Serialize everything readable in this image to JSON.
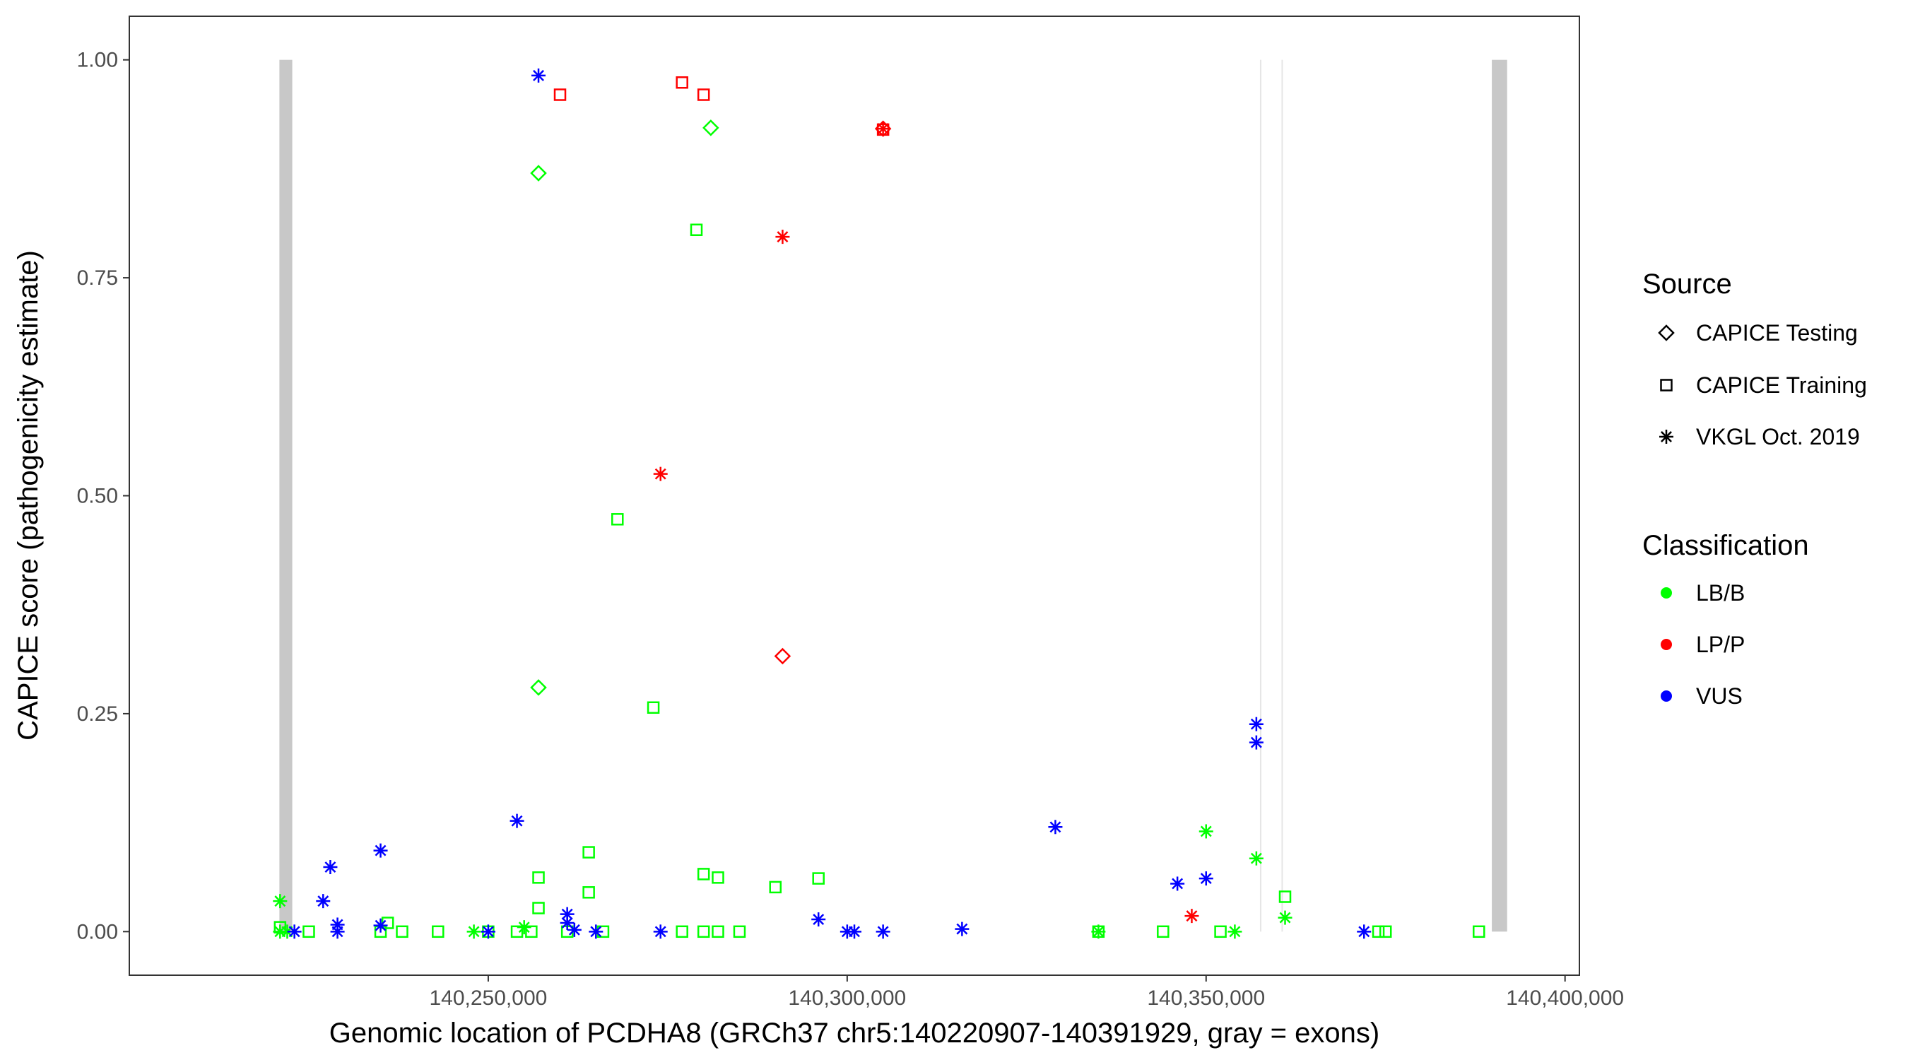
{
  "chart_data": {
    "type": "scatter",
    "xlabel": "Genomic location of PCDHA8 (GRCh37 chr5:140220907-140391929, gray = exons)",
    "ylabel": "CAPICE score (pathogenicity estimate)",
    "xlim": [
      140200000,
      140402000
    ],
    "ylim": [
      -0.05,
      1.05
    ],
    "x_ticks": [
      140250000,
      140300000,
      140350000,
      140400000
    ],
    "x_tick_labels": [
      "140,250,000",
      "140,300,000",
      "140,350,000",
      "140,400,000"
    ],
    "y_ticks": [
      0,
      0.25,
      0.5,
      0.75,
      1
    ],
    "y_tick_labels": [
      "0.00",
      "0.25",
      "0.50",
      "0.75",
      "1.00"
    ],
    "grid": false,
    "legend_position": "right",
    "exons": [
      {
        "start": 140220907,
        "end": 140222700
      },
      {
        "start": 140357500,
        "end": 140357650
      },
      {
        "start": 140360500,
        "end": 140360650
      },
      {
        "start": 140389800,
        "end": 140391929
      }
    ],
    "legend": {
      "source_title": "Source",
      "sources": [
        {
          "shape": "diamond",
          "label": "CAPICE Testing"
        },
        {
          "shape": "square",
          "label": "CAPICE Training"
        },
        {
          "shape": "asterisk",
          "label": "VKGL Oct. 2019"
        }
      ],
      "class_title": "Classification",
      "classes": [
        {
          "key": "LB/B",
          "label": "LB/B",
          "color": "#00ff00"
        },
        {
          "key": "LP/P",
          "label": "LP/P",
          "color": "#ff0000"
        },
        {
          "key": "VUS",
          "label": "VUS",
          "color": "#0000ff"
        }
      ]
    },
    "series": [
      {
        "source": "CAPICE Testing",
        "shape": "diamond",
        "points": [
          {
            "x": 140257000,
            "y": 0.87,
            "cls": "LB/B"
          },
          {
            "x": 140257000,
            "y": 0.28,
            "cls": "LB/B"
          },
          {
            "x": 140281000,
            "y": 0.922,
            "cls": "LB/B"
          },
          {
            "x": 140291000,
            "y": 0.316,
            "cls": "LP/P"
          },
          {
            "x": 140305000,
            "y": 0.921,
            "cls": "LP/P"
          }
        ]
      },
      {
        "source": "CAPICE Training",
        "shape": "square",
        "points": [
          {
            "x": 140260000,
            "y": 0.96,
            "cls": "LP/P"
          },
          {
            "x": 140277000,
            "y": 0.974,
            "cls": "LP/P"
          },
          {
            "x": 140280000,
            "y": 0.96,
            "cls": "LP/P"
          },
          {
            "x": 140305000,
            "y": 0.92,
            "cls": "LP/P"
          },
          {
            "x": 140279000,
            "y": 0.805,
            "cls": "LB/B"
          },
          {
            "x": 140268000,
            "y": 0.473,
            "cls": "LB/B"
          },
          {
            "x": 140273000,
            "y": 0.257,
            "cls": "LB/B"
          },
          {
            "x": 140264000,
            "y": 0.091,
            "cls": "LB/B"
          },
          {
            "x": 140280000,
            "y": 0.066,
            "cls": "LB/B"
          },
          {
            "x": 140282000,
            "y": 0.062,
            "cls": "LB/B"
          },
          {
            "x": 140257000,
            "y": 0.062,
            "cls": "LB/B"
          },
          {
            "x": 140296000,
            "y": 0.061,
            "cls": "LB/B"
          },
          {
            "x": 140290000,
            "y": 0.051,
            "cls": "LB/B"
          },
          {
            "x": 140264000,
            "y": 0.045,
            "cls": "LB/B"
          },
          {
            "x": 140361000,
            "y": 0.04,
            "cls": "LB/B"
          },
          {
            "x": 140257000,
            "y": 0.027,
            "cls": "LB/B"
          },
          {
            "x": 140236000,
            "y": 0.01,
            "cls": "LB/B"
          },
          {
            "x": 140221000,
            "y": 0.005,
            "cls": "LB/B"
          },
          {
            "x": 140225000,
            "y": 0.0,
            "cls": "LB/B"
          },
          {
            "x": 140235000,
            "y": 0.0,
            "cls": "LB/B"
          },
          {
            "x": 140238000,
            "y": 0.0,
            "cls": "LB/B"
          },
          {
            "x": 140243000,
            "y": 0.0,
            "cls": "LB/B"
          },
          {
            "x": 140250000,
            "y": 0.0,
            "cls": "LB/B"
          },
          {
            "x": 140254000,
            "y": 0.0,
            "cls": "LB/B"
          },
          {
            "x": 140256000,
            "y": 0.0,
            "cls": "LB/B"
          },
          {
            "x": 140261000,
            "y": 0.0,
            "cls": "LB/B"
          },
          {
            "x": 140266000,
            "y": 0.0,
            "cls": "LB/B"
          },
          {
            "x": 140277000,
            "y": 0.0,
            "cls": "LB/B"
          },
          {
            "x": 140280000,
            "y": 0.0,
            "cls": "LB/B"
          },
          {
            "x": 140282000,
            "y": 0.0,
            "cls": "LB/B"
          },
          {
            "x": 140285000,
            "y": 0.0,
            "cls": "LB/B"
          },
          {
            "x": 140335000,
            "y": 0.0,
            "cls": "LB/B"
          },
          {
            "x": 140344000,
            "y": 0.0,
            "cls": "LB/B"
          },
          {
            "x": 140352000,
            "y": 0.0,
            "cls": "LB/B"
          },
          {
            "x": 140374000,
            "y": 0.0,
            "cls": "LB/B"
          },
          {
            "x": 140375000,
            "y": 0.0,
            "cls": "LB/B"
          },
          {
            "x": 140388000,
            "y": 0.0,
            "cls": "LB/B"
          }
        ]
      },
      {
        "source": "VKGL Oct. 2019",
        "shape": "asterisk",
        "points": [
          {
            "x": 140257000,
            "y": 0.982,
            "cls": "VUS"
          },
          {
            "x": 140305000,
            "y": 0.921,
            "cls": "LP/P"
          },
          {
            "x": 140291000,
            "y": 0.797,
            "cls": "LP/P"
          },
          {
            "x": 140274000,
            "y": 0.525,
            "cls": "LP/P"
          },
          {
            "x": 140357000,
            "y": 0.238,
            "cls": "VUS"
          },
          {
            "x": 140357000,
            "y": 0.217,
            "cls": "VUS"
          },
          {
            "x": 140254000,
            "y": 0.127,
            "cls": "VUS"
          },
          {
            "x": 140329000,
            "y": 0.12,
            "cls": "VUS"
          },
          {
            "x": 140350000,
            "y": 0.115,
            "cls": "LB/B"
          },
          {
            "x": 140235000,
            "y": 0.093,
            "cls": "VUS"
          },
          {
            "x": 140357000,
            "y": 0.084,
            "cls": "LB/B"
          },
          {
            "x": 140228000,
            "y": 0.074,
            "cls": "VUS"
          },
          {
            "x": 140350000,
            "y": 0.061,
            "cls": "VUS"
          },
          {
            "x": 140346000,
            "y": 0.055,
            "cls": "VUS"
          },
          {
            "x": 140227000,
            "y": 0.035,
            "cls": "VUS"
          },
          {
            "x": 140221000,
            "y": 0.035,
            "cls": "LB/B"
          },
          {
            "x": 140261000,
            "y": 0.02,
            "cls": "VUS"
          },
          {
            "x": 140348000,
            "y": 0.018,
            "cls": "LP/P"
          },
          {
            "x": 140361000,
            "y": 0.016,
            "cls": "LB/B"
          },
          {
            "x": 140296000,
            "y": 0.014,
            "cls": "VUS"
          },
          {
            "x": 140261000,
            "y": 0.01,
            "cls": "VUS"
          },
          {
            "x": 140229000,
            "y": 0.008,
            "cls": "VUS"
          },
          {
            "x": 140235000,
            "y": 0.007,
            "cls": "VUS"
          },
          {
            "x": 140255000,
            "y": 0.005,
            "cls": "LB/B"
          },
          {
            "x": 140221000,
            "y": 0.0,
            "cls": "LB/B"
          },
          {
            "x": 140222000,
            "y": 0.0,
            "cls": "LB/B"
          },
          {
            "x": 140223000,
            "y": 0.0,
            "cls": "VUS"
          },
          {
            "x": 140229000,
            "y": 0.0,
            "cls": "VUS"
          },
          {
            "x": 140248000,
            "y": 0.0,
            "cls": "LB/B"
          },
          {
            "x": 140250000,
            "y": 0.0,
            "cls": "VUS"
          },
          {
            "x": 140262000,
            "y": 0.002,
            "cls": "VUS"
          },
          {
            "x": 140265000,
            "y": 0.0,
            "cls": "VUS"
          },
          {
            "x": 140274000,
            "y": 0.0,
            "cls": "VUS"
          },
          {
            "x": 140300000,
            "y": 0.0,
            "cls": "VUS"
          },
          {
            "x": 140301000,
            "y": 0.0,
            "cls": "VUS"
          },
          {
            "x": 140305000,
            "y": 0.0,
            "cls": "VUS"
          },
          {
            "x": 140316000,
            "y": 0.003,
            "cls": "VUS"
          },
          {
            "x": 140335000,
            "y": 0.0,
            "cls": "LB/B"
          },
          {
            "x": 140354000,
            "y": 0.0,
            "cls": "LB/B"
          },
          {
            "x": 140372000,
            "y": 0.0,
            "cls": "VUS"
          }
        ]
      }
    ]
  }
}
